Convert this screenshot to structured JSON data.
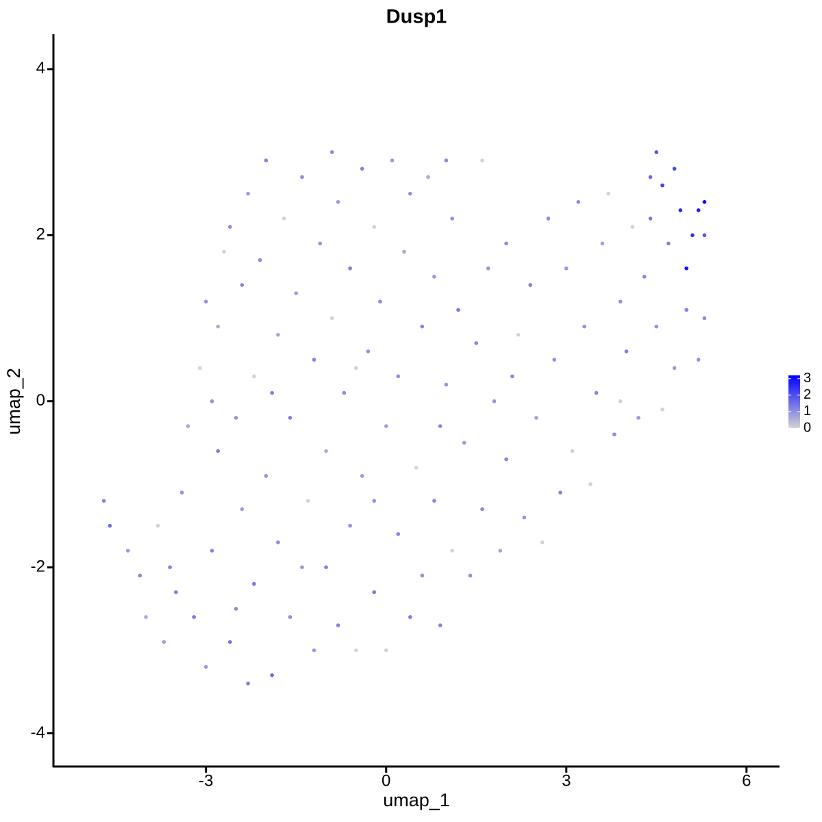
{
  "chart_data": {
    "type": "scatter",
    "title": "Dusp1",
    "x_label": "umap_1",
    "y_label": "umap_2",
    "xlim": [
      -5.54,
      6.55
    ],
    "ylim": [
      -4.4,
      4.42
    ],
    "xticks": [
      -3,
      0,
      3,
      6
    ],
    "yticks": [
      -4,
      -2,
      0,
      2,
      4
    ],
    "color_scale": {
      "low": "#d3d3d3",
      "high": "#0000ff",
      "lim": [
        0,
        3.2
      ],
      "ticks": [
        0,
        1,
        2,
        3
      ]
    },
    "x": [
      -4.7,
      -4.6,
      -4.3,
      -4.1,
      -4.0,
      -3.8,
      -3.7,
      -3.5,
      -3.4,
      -3.3,
      -3.2,
      -3.1,
      -3.0,
      -3.0,
      -2.9,
      -2.8,
      -2.8,
      -2.7,
      -2.6,
      -2.6,
      -2.5,
      -2.4,
      -2.4,
      -2.3,
      -2.3,
      -2.2,
      -2.2,
      -2.1,
      -2.0,
      -2.0,
      -1.9,
      -1.8,
      -1.8,
      -1.7,
      -1.6,
      -1.6,
      -1.5,
      -1.4,
      -1.3,
      -1.2,
      -1.2,
      -1.1,
      -1.0,
      -1.0,
      -0.9,
      -0.9,
      -0.8,
      -0.8,
      -0.7,
      -0.6,
      -0.6,
      -0.5,
      -0.4,
      -0.4,
      -0.3,
      -0.2,
      -0.2,
      -0.1,
      0.0,
      0.0,
      0.1,
      0.2,
      0.2,
      0.3,
      0.4,
      0.4,
      0.5,
      0.6,
      0.6,
      0.7,
      0.8,
      0.8,
      0.9,
      1.0,
      1.0,
      1.1,
      1.2,
      1.3,
      1.4,
      1.5,
      1.6,
      1.6,
      1.7,
      1.8,
      1.9,
      2.0,
      2.0,
      2.2,
      2.3,
      2.4,
      2.5,
      2.6,
      2.7,
      2.8,
      2.9,
      3.0,
      3.1,
      3.2,
      3.3,
      3.4,
      3.5,
      3.6,
      3.7,
      3.8,
      3.9,
      4.0,
      4.1,
      4.2,
      4.3,
      4.4,
      4.5,
      4.5,
      4.6,
      4.6,
      4.7,
      4.8,
      4.8,
      4.9,
      5.0,
      5.0,
      5.1,
      5.2,
      5.2,
      5.3,
      5.3,
      5.3,
      -2.5,
      -1.4,
      -3.6,
      -2.9,
      -0.5,
      1.1,
      2.1,
      -1.9,
      -0.2,
      0.9,
      3.9,
      4.4
    ],
    "y": [
      -1.2,
      -1.5,
      -1.8,
      -2.1,
      -2.6,
      -1.5,
      -2.9,
      -2.3,
      -1.1,
      -0.3,
      -2.6,
      0.4,
      -3.2,
      1.2,
      -1.8,
      0.9,
      -0.6,
      1.8,
      2.1,
      -2.9,
      -0.2,
      -1.3,
      1.4,
      -3.4,
      2.5,
      0.3,
      -2.2,
      1.7,
      -0.9,
      2.9,
      -3.3,
      0.8,
      -1.7,
      2.2,
      -2.6,
      -0.2,
      1.3,
      2.7,
      -1.2,
      0.5,
      -3.0,
      1.9,
      -2.0,
      -0.6,
      3.0,
      1.0,
      -2.7,
      2.4,
      0.1,
      -1.5,
      1.6,
      -3.0,
      2.8,
      -0.9,
      0.6,
      -2.3,
      2.1,
      1.2,
      -0.3,
      -3.0,
      2.9,
      -1.6,
      0.3,
      1.8,
      -2.6,
      2.5,
      -0.8,
      0.9,
      -2.1,
      2.7,
      -1.2,
      1.5,
      -2.7,
      0.2,
      2.9,
      -1.8,
      1.1,
      -0.5,
      -2.1,
      0.7,
      2.9,
      -1.3,
      1.6,
      0.0,
      -1.8,
      1.9,
      -0.7,
      0.8,
      -1.4,
      1.4,
      -0.2,
      -1.7,
      2.2,
      0.5,
      -1.1,
      1.6,
      -0.6,
      2.4,
      0.9,
      -1.0,
      0.1,
      1.9,
      2.5,
      -0.4,
      1.2,
      0.6,
      2.1,
      -0.2,
      1.5,
      2.7,
      3.0,
      0.9,
      2.6,
      -0.1,
      1.9,
      2.8,
      0.4,
      2.3,
      1.6,
      1.1,
      2.0,
      0.5,
      2.3,
      2.4,
      1.0,
      2.0,
      -2.5,
      -2.0,
      -2.0,
      0.0,
      0.4,
      2.2,
      0.3,
      0.1,
      -1.2,
      -0.3,
      0.0,
      2.2
    ],
    "values": [
      1.2,
      1.5,
      0.9,
      1.1,
      0.6,
      0,
      0.8,
      1.3,
      1.0,
      0.7,
      1.4,
      0,
      0.9,
      1.0,
      1.2,
      0.6,
      1.3,
      0,
      1.1,
      1.5,
      1.0,
      0.8,
      1.2,
      1.3,
      0.9,
      0,
      1.4,
      1.1,
      1.0,
      1.2,
      1.6,
      0.7,
      1.1,
      0,
      1.0,
      1.3,
      0.8,
      1.1,
      0,
      1.2,
      0.9,
      1.0,
      1.3,
      0.6,
      1.1,
      0,
      1.2,
      0.9,
      1.1,
      1.0,
      1.3,
      0,
      1.2,
      0.9,
      1.0,
      1.4,
      0,
      1.1,
      0.8,
      0,
      0.9,
      1.2,
      1.0,
      0.7,
      1.3,
      1.0,
      0,
      1.2,
      1.0,
      0.6,
      1.1,
      0.9,
      1.2,
      1.0,
      1.1,
      0,
      1.3,
      0.8,
      1.0,
      1.2,
      0,
      1.1,
      0.9,
      1.0,
      0.7,
      1.1,
      1.2,
      0,
      1.0,
      1.3,
      0.8,
      0,
      1.1,
      1.0,
      1.2,
      0.9,
      0,
      1.1,
      1.0,
      0,
      1.2,
      0.8,
      0,
      1.1,
      1.0,
      1.3,
      0,
      0.9,
      1.2,
      1.6,
      1.9,
      1.0,
      2.2,
      0,
      1.3,
      2.1,
      0.9,
      2.6,
      2.9,
      1.2,
      2.5,
      1.0,
      2.8,
      3.1,
      1.1,
      1.9,
      1.1,
      0.9,
      1.2,
      1.0,
      0,
      1.0,
      1.1,
      1.3,
      1.0,
      1.2,
      0,
      1.4
    ]
  }
}
